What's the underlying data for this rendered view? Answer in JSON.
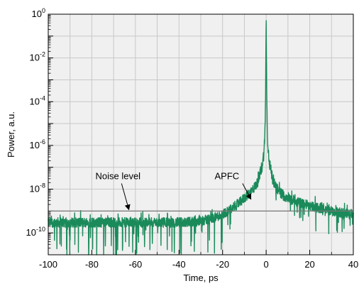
{
  "chart_data": {
    "type": "line",
    "title": "",
    "xlabel": "Time, ps",
    "ylabel": "Power, a.u.",
    "xlim": [
      -100,
      40
    ],
    "ylim_log10": [
      -11,
      0
    ],
    "yscale": "log",
    "grid": true,
    "background_color": "#f0f0f0",
    "grid_color": "#c8c8c8",
    "line_color": "#1a8a5a",
    "noise_level_color": "#777777",
    "x_ticks": [
      -100,
      -80,
      -60,
      -40,
      -20,
      0,
      20,
      40
    ],
    "x_tick_labels": [
      "-100",
      "-80",
      "-60",
      "-40",
      "-20",
      "0",
      "20",
      "40"
    ],
    "y_major_ticks": [
      {
        "exp": 0,
        "base": "10",
        "sup": "0"
      },
      {
        "exp": -2,
        "base": "10",
        "sup": "-2"
      },
      {
        "exp": -4,
        "base": "10",
        "sup": "-4"
      },
      {
        "exp": -6,
        "base": "10",
        "sup": "-6"
      },
      {
        "exp": -8,
        "base": "10",
        "sup": "-8"
      },
      {
        "exp": -10,
        "base": "10",
        "sup": "-10"
      }
    ],
    "noise_level": 1e-09,
    "series": [
      {
        "x": [
          -100,
          -90,
          -80,
          -70,
          -60,
          -50,
          -40,
          -30,
          -25,
          -20,
          -15,
          -12,
          -10,
          -8,
          -6,
          -4,
          -3,
          -2,
          -1.5,
          -1,
          -0.6,
          -0.3,
          0,
          0.3,
          0.6,
          1,
          1.5,
          2,
          3,
          4,
          6,
          8,
          10,
          12,
          15,
          20,
          25,
          30,
          35,
          40
        ],
        "y": [
          3e-10,
          3e-10,
          3e-10,
          3e-10,
          3e-10,
          3e-10,
          3e-10,
          3.5e-10,
          4.5e-10,
          7e-10,
          1.5e-09,
          2.5e-09,
          4e-09,
          6e-09,
          1e-08,
          2e-08,
          4e-08,
          1e-07,
          2e-07,
          5e-07,
          3e-06,
          0.0001,
          1,
          0.0001,
          3e-06,
          5e-07,
          2e-07,
          8e-08,
          3e-08,
          1.5e-08,
          8e-09,
          5e-09,
          4e-09,
          3e-09,
          2.5e-09,
          1.8e-09,
          1.3e-09,
          1e-09,
          8e-10,
          7e-10
        ]
      }
    ],
    "annotations": [
      {
        "text": "Noise level",
        "x": -68,
        "y": 1e-08,
        "arrow_to": {
          "x": -63,
          "y": 1e-09
        }
      },
      {
        "text": "APFC",
        "x": -18,
        "y": 1e-08,
        "arrow_to": {
          "x": -7,
          "y": 3e-09
        }
      }
    ]
  }
}
